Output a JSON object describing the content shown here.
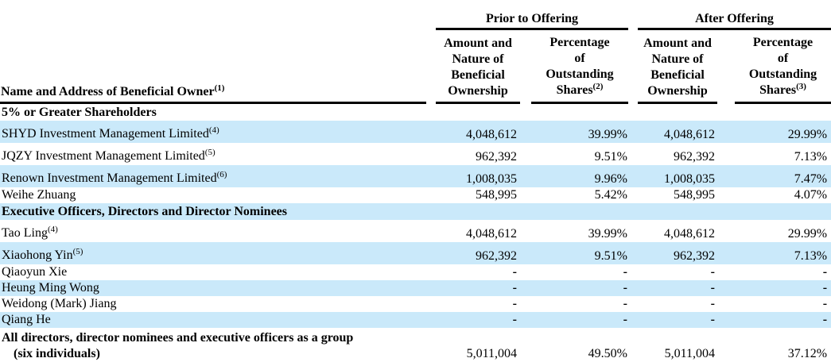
{
  "colors": {
    "row_highlight": "#cae9fa",
    "rule": "#000000",
    "text": "#000000"
  },
  "table": {
    "groups": [
      "Prior to Offering",
      "After Offering"
    ],
    "columns": [
      {
        "key": "name",
        "lines": [
          "Name and Address of Beneficial Owner"
        ],
        "sup": "(1)"
      },
      {
        "key": "prior-amount",
        "lines": [
          "Amount and",
          "Nature of",
          "Beneficial",
          "Ownership"
        ],
        "sup": null
      },
      {
        "key": "prior-percent",
        "lines": [
          "Percentage",
          "of",
          "Outstanding",
          "Shares"
        ],
        "sup": "(2)"
      },
      {
        "key": "after-amount",
        "lines": [
          "Amount and",
          "Nature of",
          "Beneficial",
          "Ownership"
        ],
        "sup": null
      },
      {
        "key": "after-percent",
        "lines": [
          "Percentage",
          "of",
          "Outstanding",
          "Shares"
        ],
        "sup": "(3)"
      }
    ],
    "rows": [
      {
        "type": "section",
        "name": "5% or Greater Shareholders",
        "shaded": false
      },
      {
        "type": "data",
        "name": "SHYD Investment Management Limited",
        "sup": "(4)",
        "shaded": true,
        "values": [
          "4,048,612",
          "39.99%",
          "4,048,612",
          "29.99%"
        ]
      },
      {
        "type": "data",
        "name": "JQZY Investment Management Limited",
        "sup": "(5)",
        "shaded": false,
        "values": [
          "962,392",
          "9.51%",
          "962,392",
          "7.13%"
        ]
      },
      {
        "type": "data",
        "name": "Renown Investment Management Limited",
        "sup": "(6)",
        "shaded": true,
        "values": [
          "1,008,035",
          "9.96%",
          "1,008,035",
          "7.47%"
        ]
      },
      {
        "type": "data",
        "name": "Weihe Zhuang",
        "sup": null,
        "shaded": false,
        "values": [
          "548,995",
          "5.42%",
          "548,995",
          "4.07%"
        ]
      },
      {
        "type": "section",
        "name": "Executive Officers, Directors and Director Nominees",
        "shaded": true
      },
      {
        "type": "data",
        "name": "Tao Ling",
        "sup": "(4)",
        "shaded": false,
        "values": [
          "4,048,612",
          "39.99%",
          "4,048,612",
          "29.99%"
        ]
      },
      {
        "type": "data",
        "name": "Xiaohong Yin",
        "sup": "(5)",
        "shaded": true,
        "values": [
          "962,392",
          "9.51%",
          "962,392",
          "7.13%"
        ]
      },
      {
        "type": "data",
        "name": "Qiaoyun Xie",
        "sup": null,
        "shaded": false,
        "values": [
          "-",
          "-",
          "-",
          "-"
        ]
      },
      {
        "type": "data",
        "name": "Heung Ming Wong",
        "sup": null,
        "shaded": true,
        "values": [
          "-",
          "-",
          "-",
          "-"
        ]
      },
      {
        "type": "data",
        "name": "Weidong (Mark) Jiang",
        "sup": null,
        "shaded": false,
        "values": [
          "-",
          "-",
          "-",
          "-"
        ]
      },
      {
        "type": "data",
        "name": "Qiang He",
        "sup": null,
        "shaded": true,
        "values": [
          "-",
          "-",
          "-",
          "-"
        ]
      },
      {
        "type": "data",
        "name": "All directors, director nominees and executive officers as a group",
        "name_line2": "(six individuals)",
        "sup": null,
        "shaded": false,
        "values": [
          "5,011,004",
          "49.50%",
          "5,011,004",
          "37.12%"
        ]
      }
    ]
  }
}
